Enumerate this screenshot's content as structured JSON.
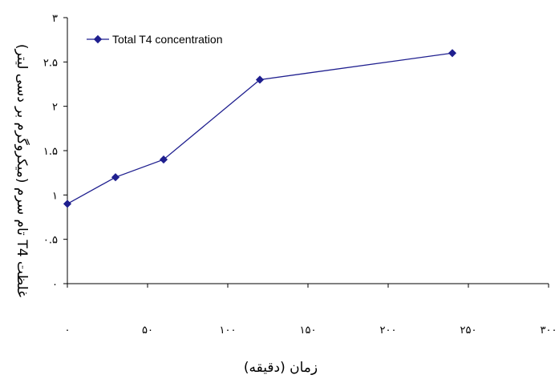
{
  "chart_data": {
    "type": "line",
    "title": "",
    "xlabel": "زمان (دقیقه)",
    "ylabel": "غلظت T4 تام سرم (میکروگرم بر دسی لیتر)",
    "x_tick_labels": [
      "۰",
      "۵۰",
      "۱۰۰",
      "۱۵۰",
      "۲۰۰",
      "۲۵۰",
      "۳۰۰"
    ],
    "y_tick_labels": [
      "۰",
      "۰.۵",
      "۱",
      "۱.۵",
      "۲",
      "۲.۵",
      "۳"
    ],
    "x_ticks": [
      0,
      50,
      100,
      150,
      200,
      250,
      300
    ],
    "y_ticks": [
      0,
      0.5,
      1,
      1.5,
      2,
      2.5,
      3
    ],
    "xlim": [
      0,
      300
    ],
    "ylim": [
      0,
      3
    ],
    "grid": false,
    "legend_position": "top-left",
    "series": [
      {
        "name": "Total T4 concentration",
        "color": "#1f1f8f",
        "marker": "diamond",
        "x": [
          0,
          30,
          60,
          120,
          240
        ],
        "y": [
          0.9,
          1.2,
          1.4,
          2.3,
          2.6
        ]
      }
    ]
  }
}
